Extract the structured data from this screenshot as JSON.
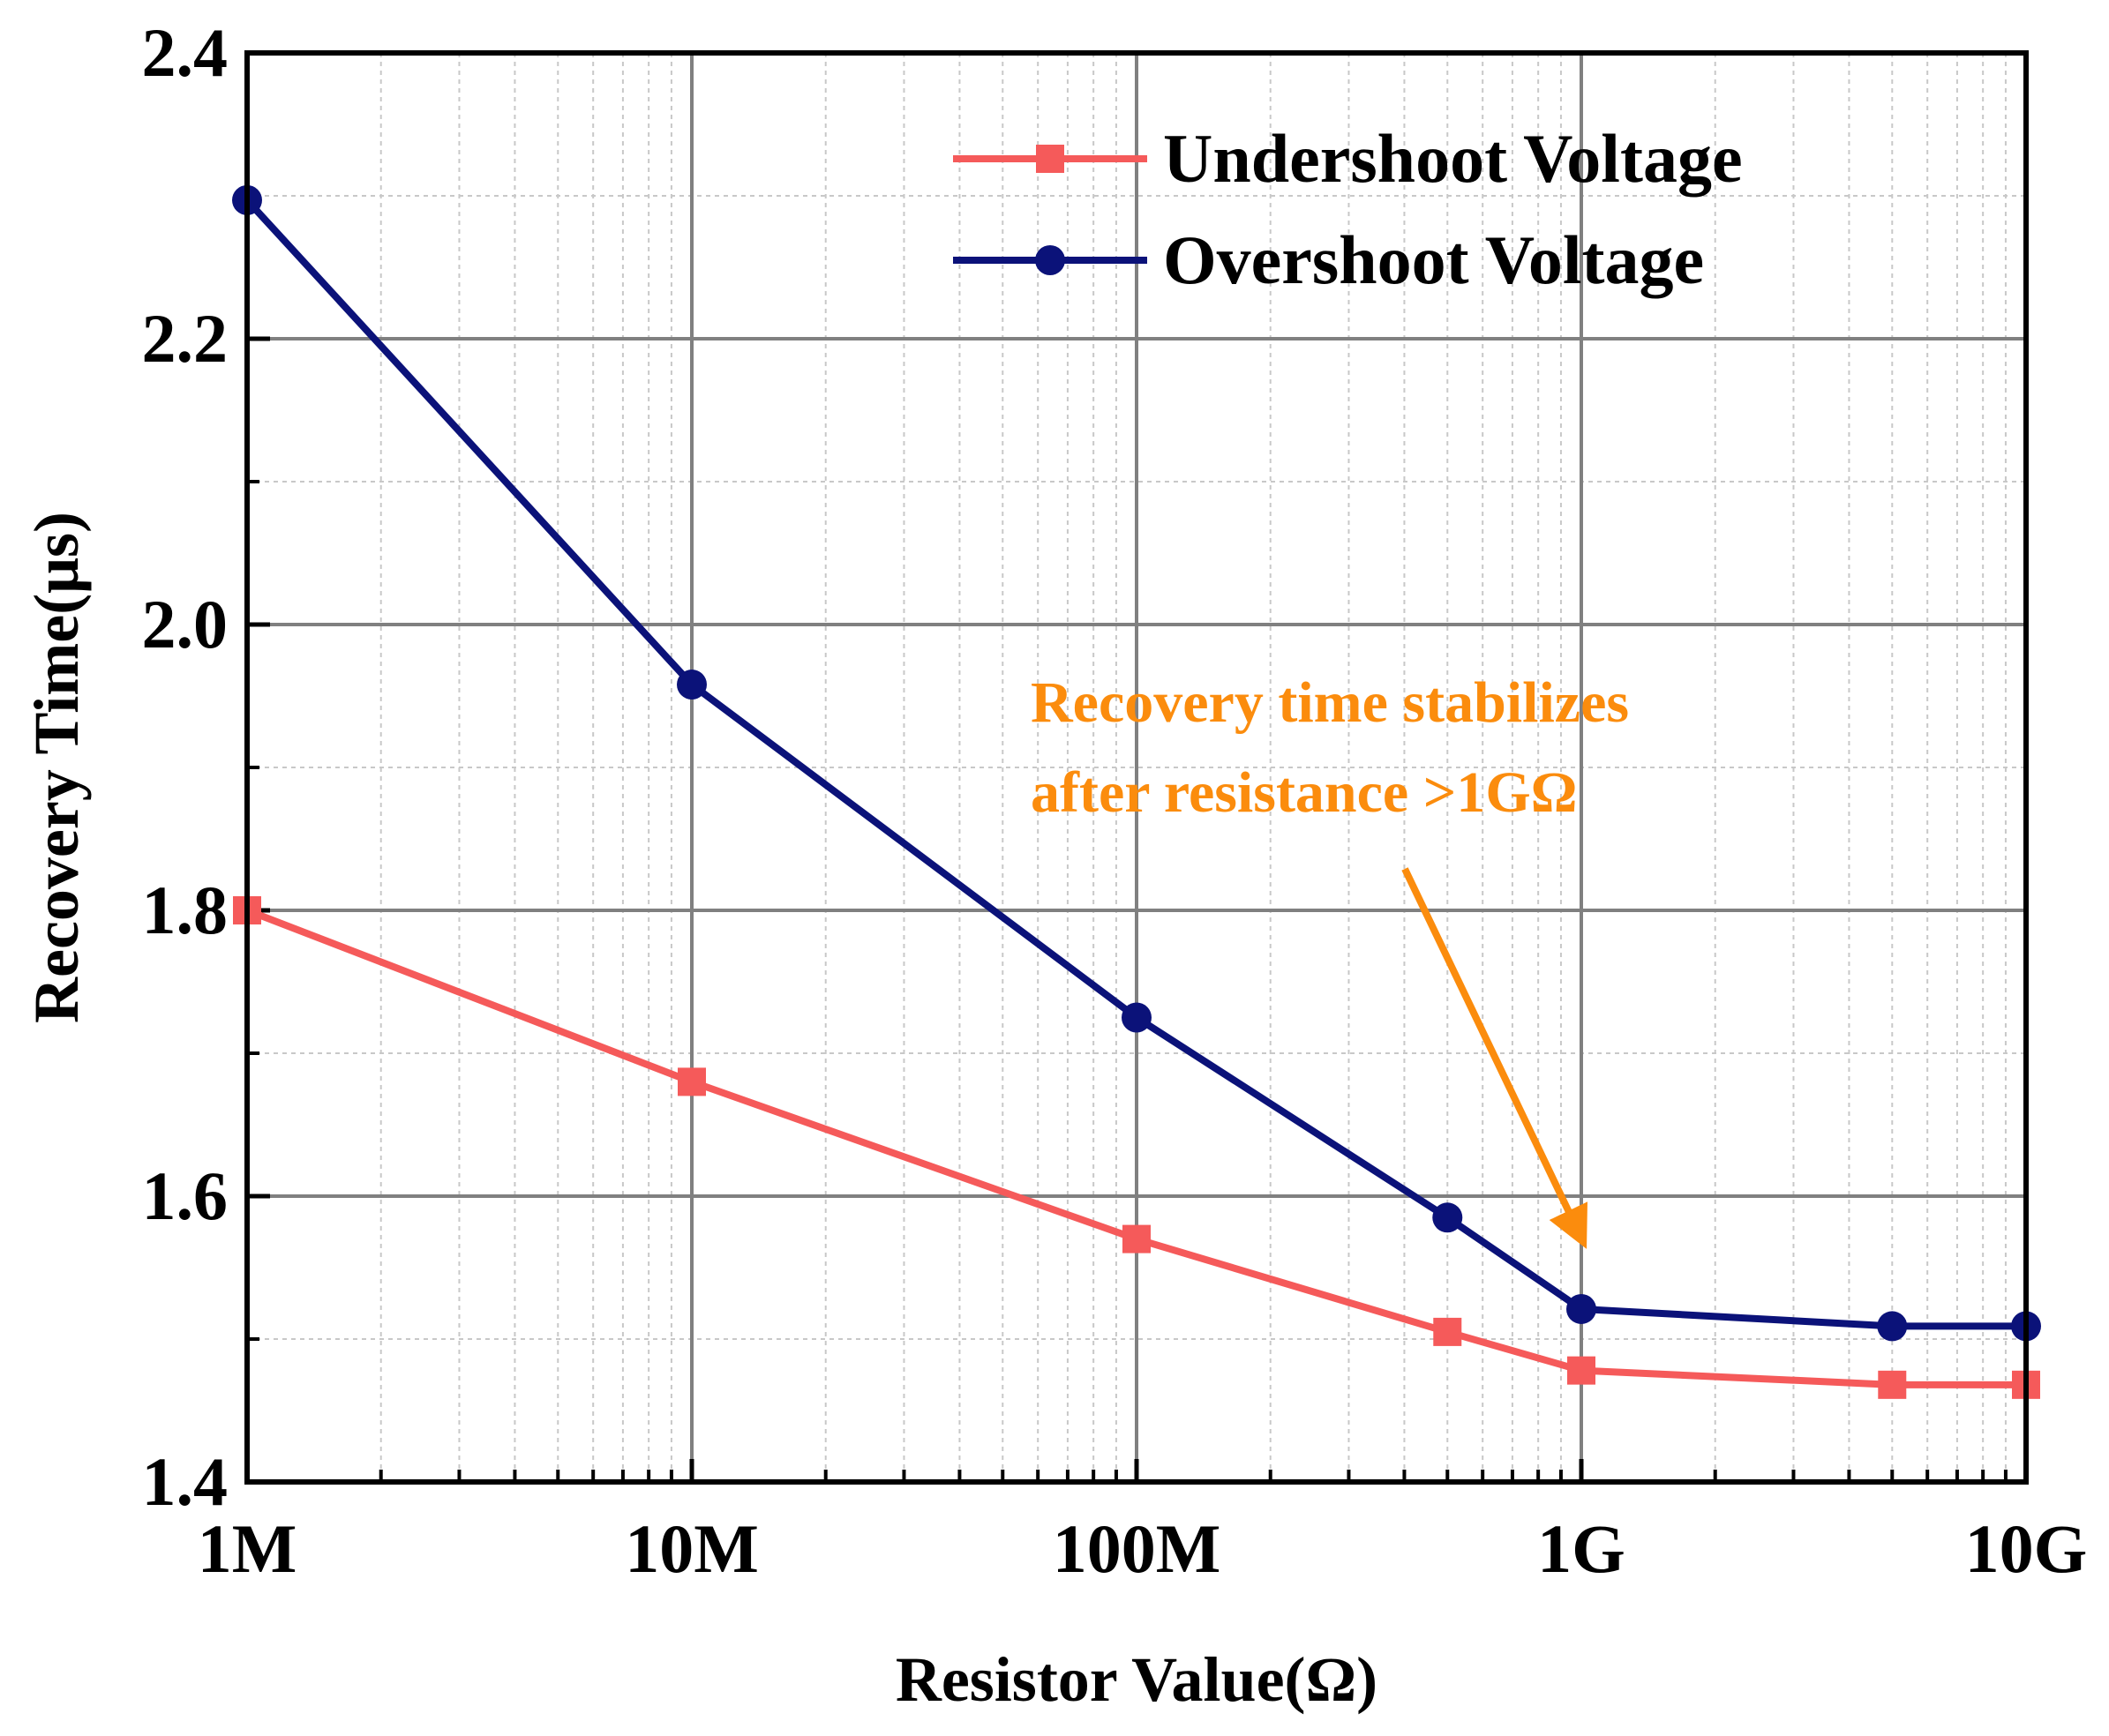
{
  "chart_data": {
    "type": "line",
    "title": "",
    "xlabel": "Resistor Value(Ω)",
    "ylabel": "Recovery Time(μs)",
    "xscale": "log",
    "xlim": [
      1000000,
      10000000000
    ],
    "ylim": [
      1.4,
      2.4
    ],
    "xticks": [
      {
        "value": 1000000,
        "label": "1M"
      },
      {
        "value": 10000000,
        "label": "10M"
      },
      {
        "value": 100000000,
        "label": "100M"
      },
      {
        "value": 1000000000,
        "label": "1G"
      },
      {
        "value": 10000000000,
        "label": "10G"
      }
    ],
    "yticks": [
      {
        "value": 1.4,
        "label": "1.4"
      },
      {
        "value": 1.6,
        "label": "1.6"
      },
      {
        "value": 1.8,
        "label": "1.8"
      },
      {
        "value": 2.0,
        "label": "2.0"
      },
      {
        "value": 2.2,
        "label": "2.2"
      },
      {
        "value": 2.4,
        "label": "2.4"
      }
    ],
    "grid": true,
    "legend_position": "top-right",
    "series": [
      {
        "name": "Undershoot Voltage",
        "color": "#f55a5a",
        "marker": "square",
        "x": [
          1000000,
          10000000,
          100000000,
          500000000,
          1000000000,
          5000000000,
          10000000000
        ],
        "y": [
          1.8,
          1.68,
          1.57,
          1.505,
          1.478,
          1.468,
          1.468
        ]
      },
      {
        "name": "Overshoot Voltage",
        "color": "#0b1279",
        "marker": "circle",
        "x": [
          1000000,
          10000000,
          100000000,
          500000000,
          1000000000,
          5000000000,
          10000000000
        ],
        "y": [
          2.297,
          1.958,
          1.725,
          1.585,
          1.521,
          1.509,
          1.509
        ]
      }
    ],
    "annotations": [
      {
        "lines": [
          "Recovery time stabilizes",
          "after resistance >1GΩ"
        ],
        "color": "#fb8c0d",
        "arrow_target": {
          "x": 1100000000,
          "y": 1.545
        }
      }
    ]
  }
}
